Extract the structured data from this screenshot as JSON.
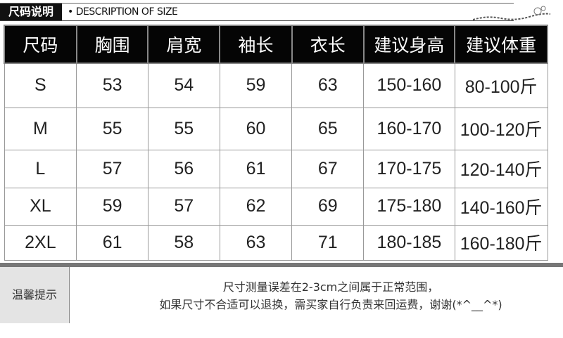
{
  "title": {
    "label": "尺码说明",
    "description": "• DESCRIPTION OF SIZE"
  },
  "table": {
    "headers": [
      "尺码",
      "胸围",
      "肩宽",
      "袖长",
      "衣长",
      "建议身高",
      "建议体重"
    ],
    "rows": [
      [
        "S",
        "53",
        "54",
        "59",
        "63",
        "150-160",
        "80-100斤"
      ],
      [
        "M",
        "55",
        "55",
        "60",
        "65",
        "160-170",
        "100-120斤"
      ],
      [
        "L",
        "57",
        "56",
        "61",
        "67",
        "170-175",
        "120-140斤"
      ],
      [
        "XL",
        "59",
        "57",
        "62",
        "69",
        "175-180",
        "140-160斤"
      ],
      [
        "2XL",
        "61",
        "58",
        "63",
        "71",
        "180-185",
        "160-180斤"
      ]
    ]
  },
  "tips": {
    "label": "温馨提示",
    "line1": "尺寸测量误差在2-3cm之间属于正常范围，",
    "line2": "如果尺寸不合适可以退换，需买家自行负责来回运费，谢谢(*^__^*)"
  }
}
